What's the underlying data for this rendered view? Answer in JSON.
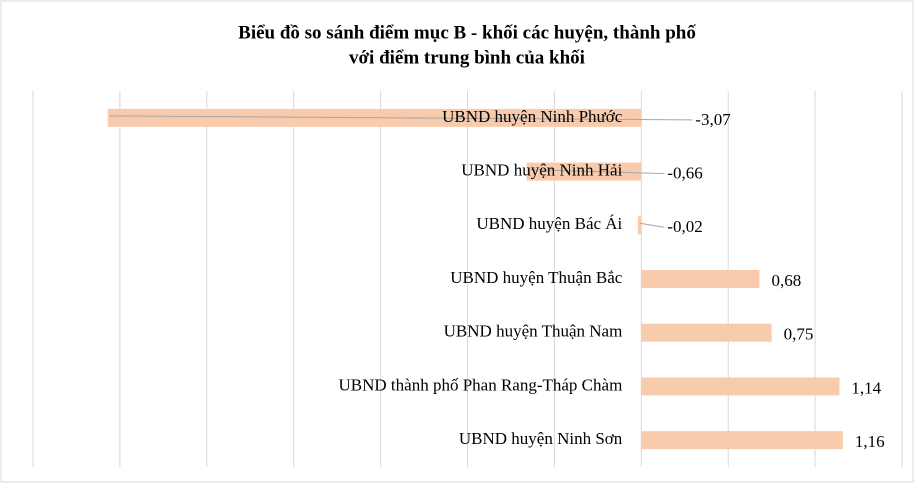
{
  "chart_data": {
    "type": "barh",
    "title": [
      "Biểu đồ so sánh điểm mục B - khối các huyện, thành phố",
      "với điểm trung bình của khối"
    ],
    "categories": [
      "UBND huyện Ninh Phước",
      "UBND huyện Ninh Hải",
      "UBND huyện Bác Ái",
      "UBND huyện Thuận Bắc",
      "UBND huyện Thuận Nam",
      "UBND thành phố Phan Rang-Tháp Chàm",
      "UBND huyện Ninh Sơn"
    ],
    "values": [
      -3.07,
      -0.66,
      -0.02,
      0.68,
      0.75,
      1.14,
      1.16
    ],
    "value_labels": [
      "-3,07",
      "-0,66",
      "-0,02",
      "0,68",
      "0,75",
      "1,14",
      "1,16"
    ],
    "color": "#f8cbad",
    "xlim": [
      -3.5,
      1.5
    ],
    "xticks": [
      -3.5,
      -3,
      -2.5,
      -2,
      -1.5,
      -1,
      -0.5,
      0,
      0.5,
      1,
      1.5
    ],
    "grid": true
  }
}
